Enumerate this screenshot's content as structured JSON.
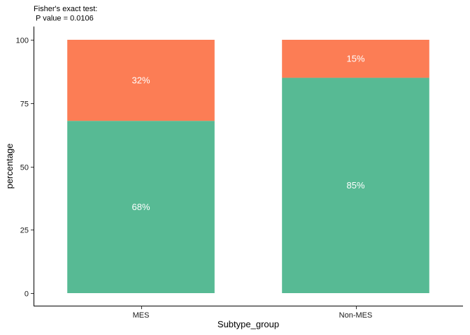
{
  "chart_data": {
    "type": "bar",
    "stacked": true,
    "subtitle_lines": [
      "Fisher's exact test:",
      " P value = 0.0106"
    ],
    "xlabel": "Subtype_group",
    "ylabel": "percentage",
    "categories": [
      "MES",
      "Non-MES"
    ],
    "series": [
      {
        "color": "#57BA94",
        "values": [
          68,
          85
        ],
        "labels": [
          "68%",
          "85%"
        ]
      },
      {
        "color": "#FC7D55",
        "values": [
          32,
          15
        ],
        "labels": [
          "32%",
          "15%"
        ]
      }
    ],
    "ylim": [
      0,
      100
    ],
    "yticks": [
      0,
      25,
      50,
      75,
      100
    ],
    "grid": false,
    "legend": "none"
  }
}
